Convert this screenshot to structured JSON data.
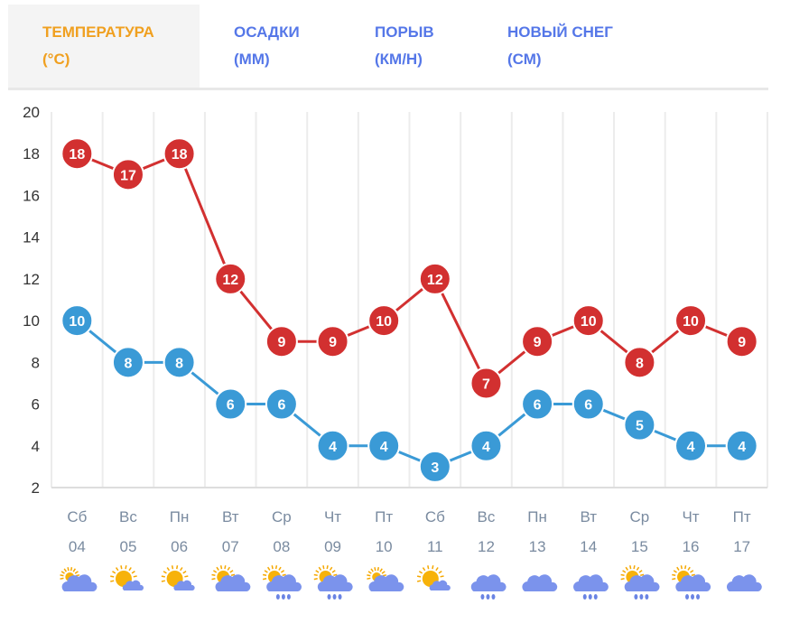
{
  "tabs": [
    {
      "title": "ТЕМПЕРАТУРА",
      "unit": "(°C)",
      "active": true
    },
    {
      "title": "ОСАДКИ",
      "unit": "(ММ)",
      "active": false
    },
    {
      "title": "ПОРЫВ",
      "unit": "(КМ/Н)",
      "active": false
    },
    {
      "title": "НОВЫЙ СНЕГ",
      "unit": "(СМ)",
      "active": false
    }
  ],
  "colors": {
    "max": "#d23030",
    "min": "#3a9ad6",
    "active_tab": "#f0a020",
    "tab": "#5577e8"
  },
  "chart_data": {
    "type": "line",
    "ylim": [
      2,
      20
    ],
    "yticks": [
      2,
      4,
      6,
      8,
      10,
      12,
      14,
      16,
      18,
      20
    ],
    "days": [
      "Сб",
      "Вс",
      "Пн",
      "Вт",
      "Ср",
      "Чт",
      "Пт",
      "Сб",
      "Вс",
      "Пн",
      "Вт",
      "Ср",
      "Чт",
      "Пт"
    ],
    "dates": [
      "04",
      "05",
      "06",
      "07",
      "08",
      "09",
      "10",
      "11",
      "12",
      "13",
      "14",
      "15",
      "16",
      "17"
    ],
    "icons": [
      "partly-cloudy",
      "sunny-small-cloud",
      "sunny-small-cloud",
      "sun-cloud",
      "sun-cloud-rain",
      "sun-cloud-rain",
      "partly-cloudy",
      "sunny-small-cloud",
      "cloud-rain",
      "cloud",
      "cloud-rain",
      "sun-cloud-rain",
      "sun-cloud-rain",
      "cloud"
    ],
    "series": [
      {
        "name": "max",
        "values": [
          18,
          17,
          18,
          12,
          9,
          9,
          10,
          12,
          7,
          9,
          10,
          8,
          10,
          9
        ]
      },
      {
        "name": "min",
        "values": [
          10,
          8,
          8,
          6,
          6,
          4,
          4,
          3,
          4,
          6,
          6,
          5,
          4,
          4
        ]
      }
    ]
  }
}
